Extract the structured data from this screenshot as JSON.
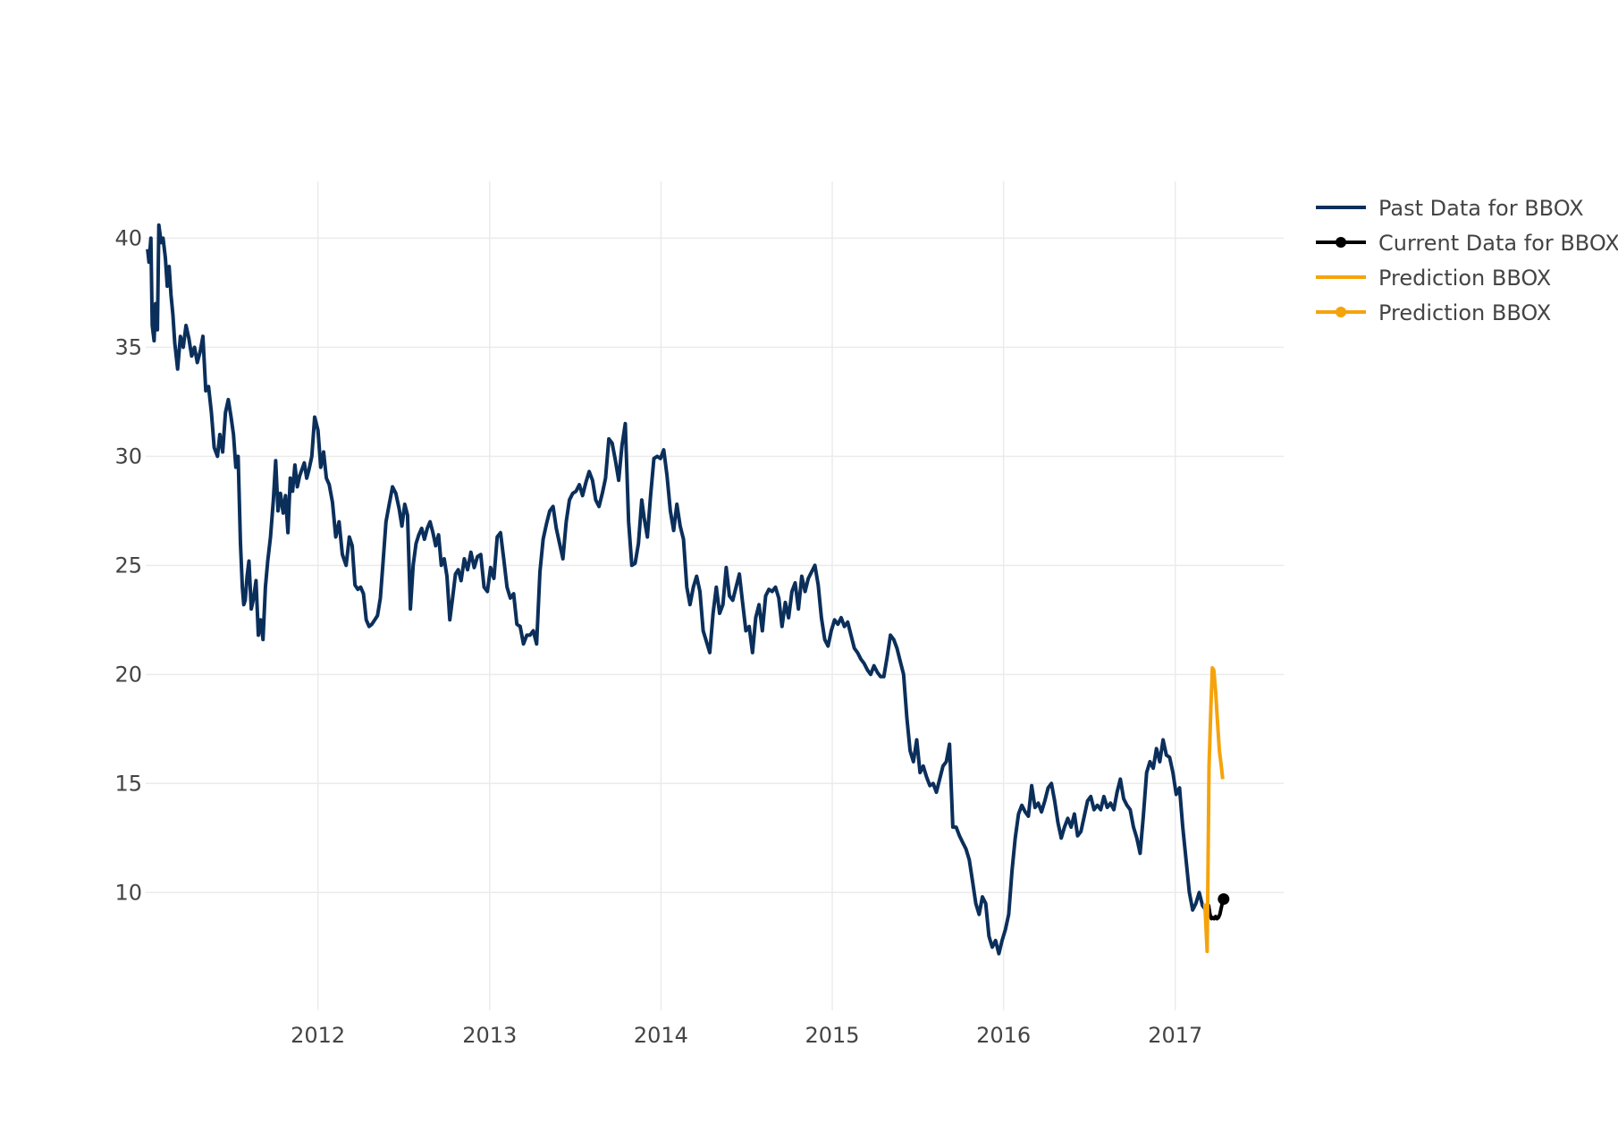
{
  "chart_data": {
    "type": "line",
    "title": "",
    "xlabel": "",
    "ylabel": "",
    "x_ticks": [
      "2012",
      "2013",
      "2014",
      "2015",
      "2016",
      "2017"
    ],
    "y_ticks": [
      10,
      15,
      20,
      25,
      30,
      35,
      40
    ],
    "xlim": [
      "2010-12-30",
      "2017-08-20"
    ],
    "ylim": [
      4.6,
      42.6
    ],
    "grid": true,
    "legend_position": "top-right",
    "series": [
      {
        "name": "Past Data for BBOX",
        "mode": "lines",
        "color": "#0b2f5b",
        "x": [
          "2011-01-03",
          "2011-01-06",
          "2011-01-10",
          "2011-01-13",
          "2011-01-17",
          "2011-01-20",
          "2011-01-24",
          "2011-01-27",
          "2011-02-01",
          "2011-02-05",
          "2011-02-10",
          "2011-02-14",
          "2011-02-18",
          "2011-02-22",
          "2011-02-26",
          "2011-03-02",
          "2011-03-08",
          "2011-03-14",
          "2011-03-20",
          "2011-03-26",
          "2011-04-01",
          "2011-04-07",
          "2011-04-13",
          "2011-04-19",
          "2011-04-25",
          "2011-05-01",
          "2011-05-07",
          "2011-05-13",
          "2011-05-19",
          "2011-05-25",
          "2011-06-01",
          "2011-06-06",
          "2011-06-12",
          "2011-06-18",
          "2011-06-24",
          "2011-06-30",
          "2011-07-05",
          "2011-07-10",
          "2011-07-15",
          "2011-07-20",
          "2011-07-24",
          "2011-07-27",
          "2011-07-30",
          "2011-08-03",
          "2011-08-07",
          "2011-08-12",
          "2011-08-17",
          "2011-08-22",
          "2011-08-27",
          "2011-09-01",
          "2011-09-06",
          "2011-09-11",
          "2011-09-16",
          "2011-09-22",
          "2011-09-28",
          "2011-10-03",
          "2011-10-08",
          "2011-10-13",
          "2011-10-19",
          "2011-10-24",
          "2011-10-29",
          "2011-11-03",
          "2011-11-08",
          "2011-11-13",
          "2011-11-18",
          "2011-11-23",
          "2011-11-28",
          "2011-12-03",
          "2011-12-08",
          "2011-12-13",
          "2011-12-19",
          "2011-12-25",
          "2012-01-01",
          "2012-01-07",
          "2012-01-13",
          "2012-01-19",
          "2012-01-25",
          "2012-02-01",
          "2012-02-08",
          "2012-02-15",
          "2012-02-22",
          "2012-03-01",
          "2012-03-08",
          "2012-03-14",
          "2012-03-20",
          "2012-03-26",
          "2012-04-01",
          "2012-04-07",
          "2012-04-13",
          "2012-04-19",
          "2012-04-25",
          "2012-05-01",
          "2012-05-07",
          "2012-05-13",
          "2012-05-19",
          "2012-05-25",
          "2012-06-01",
          "2012-06-08",
          "2012-06-15",
          "2012-06-22",
          "2012-06-28",
          "2012-07-04",
          "2012-07-10",
          "2012-07-16",
          "2012-07-22",
          "2012-07-28",
          "2012-08-03",
          "2012-08-09",
          "2012-08-15",
          "2012-08-21",
          "2012-08-27",
          "2012-09-02",
          "2012-09-08",
          "2012-09-14",
          "2012-09-20",
          "2012-09-26",
          "2012-10-02",
          "2012-10-08",
          "2012-10-14",
          "2012-10-20",
          "2012-10-26",
          "2012-11-01",
          "2012-11-08",
          "2012-11-15",
          "2012-11-22",
          "2012-11-29",
          "2012-12-06",
          "2012-12-13",
          "2012-12-20",
          "2012-12-27",
          "2013-01-03",
          "2013-01-10",
          "2013-01-17",
          "2013-01-24",
          "2013-01-31",
          "2013-02-07",
          "2013-02-14",
          "2013-02-21",
          "2013-02-28",
          "2013-03-07",
          "2013-03-14",
          "2013-03-21",
          "2013-03-28",
          "2013-04-04",
          "2013-04-11",
          "2013-04-18",
          "2013-04-25",
          "2013-05-02",
          "2013-05-09",
          "2013-05-16",
          "2013-05-23",
          "2013-05-30",
          "2013-06-06",
          "2013-06-13",
          "2013-06-20",
          "2013-06-27",
          "2013-07-04",
          "2013-07-11",
          "2013-07-18",
          "2013-07-25",
          "2013-08-01",
          "2013-08-08",
          "2013-08-15",
          "2013-08-22",
          "2013-08-29",
          "2013-09-05",
          "2013-09-12",
          "2013-09-19",
          "2013-09-26",
          "2013-10-03",
          "2013-10-10",
          "2013-10-17",
          "2013-10-24",
          "2013-10-31",
          "2013-11-07",
          "2013-11-14",
          "2013-11-19",
          "2013-11-21",
          "2013-11-26",
          "2013-12-03",
          "2013-12-10",
          "2013-12-17",
          "2013-12-24",
          "2013-12-31",
          "2014-01-07",
          "2014-01-14",
          "2014-01-21",
          "2014-01-28",
          "2014-02-04",
          "2014-02-11",
          "2014-02-18",
          "2014-02-25",
          "2014-03-04",
          "2014-03-11",
          "2014-03-18",
          "2014-03-25",
          "2014-04-01",
          "2014-04-08",
          "2014-04-15",
          "2014-04-22",
          "2014-04-29",
          "2014-05-06",
          "2014-05-13",
          "2014-05-20",
          "2014-05-27",
          "2014-06-03",
          "2014-06-10",
          "2014-06-17",
          "2014-06-24",
          "2014-07-01",
          "2014-07-08",
          "2014-07-15",
          "2014-07-22",
          "2014-07-29",
          "2014-08-05",
          "2014-08-12",
          "2014-08-19",
          "2014-08-26",
          "2014-09-02",
          "2014-09-09",
          "2014-09-16",
          "2014-09-23",
          "2014-09-30",
          "2014-10-07",
          "2014-10-14",
          "2014-10-21",
          "2014-10-28",
          "2014-11-04",
          "2014-11-11",
          "2014-11-18",
          "2014-11-25",
          "2014-12-02",
          "2014-12-09",
          "2014-12-16",
          "2014-12-23",
          "2014-12-30",
          "2015-01-06",
          "2015-01-13",
          "2015-01-20",
          "2015-01-27",
          "2015-02-03",
          "2015-02-10",
          "2015-02-17",
          "2015-02-24",
          "2015-03-03",
          "2015-03-10",
          "2015-03-17",
          "2015-03-24",
          "2015-03-31",
          "2015-04-07",
          "2015-04-14",
          "2015-04-21",
          "2015-04-28",
          "2015-05-05",
          "2015-05-12",
          "2015-05-19",
          "2015-05-26",
          "2015-06-02",
          "2015-06-09",
          "2015-06-16",
          "2015-06-23",
          "2015-06-30",
          "2015-07-07",
          "2015-07-14",
          "2015-07-21",
          "2015-07-28",
          "2015-08-04",
          "2015-08-11",
          "2015-08-18",
          "2015-08-25",
          "2015-09-01",
          "2015-09-08",
          "2015-09-15",
          "2015-09-22",
          "2015-09-29",
          "2015-10-06",
          "2015-10-13",
          "2015-10-20",
          "2015-10-27",
          "2015-11-03",
          "2015-11-10",
          "2015-11-17",
          "2015-11-24",
          "2015-12-01",
          "2015-12-08",
          "2015-12-15",
          "2015-12-22",
          "2015-12-29",
          "2016-01-05",
          "2016-01-12",
          "2016-01-19",
          "2016-01-26",
          "2016-02-02",
          "2016-02-09",
          "2016-02-16",
          "2016-02-23",
          "2016-03-01",
          "2016-03-08",
          "2016-03-15",
          "2016-03-22",
          "2016-03-29",
          "2016-04-05",
          "2016-04-12",
          "2016-04-19",
          "2016-04-26",
          "2016-05-03",
          "2016-05-10",
          "2016-05-17",
          "2016-05-24",
          "2016-05-31",
          "2016-06-07",
          "2016-06-14",
          "2016-06-21",
          "2016-06-28",
          "2016-07-05",
          "2016-07-12",
          "2016-07-19",
          "2016-07-26",
          "2016-08-02",
          "2016-08-09",
          "2016-08-16",
          "2016-08-23",
          "2016-08-30",
          "2016-09-06",
          "2016-09-13",
          "2016-09-20",
          "2016-09-27",
          "2016-10-04",
          "2016-10-11",
          "2016-10-18",
          "2016-10-25",
          "2016-11-01",
          "2016-11-08",
          "2016-11-15",
          "2016-11-22",
          "2016-11-29",
          "2016-12-06",
          "2016-12-13",
          "2016-12-20",
          "2016-12-27",
          "2017-01-03",
          "2017-01-10",
          "2017-01-17",
          "2017-01-24",
          "2017-01-31",
          "2017-02-07",
          "2017-02-14",
          "2017-02-21",
          "2017-02-28",
          "2017-03-07"
        ],
        "y": [
          39.5,
          38.9,
          40.0,
          36.0,
          35.3,
          37.0,
          35.8,
          40.6,
          39.8,
          40.0,
          39.1,
          37.8,
          38.7,
          37.4,
          36.5,
          35.2,
          34.0,
          35.5,
          35.0,
          36.0,
          35.4,
          34.6,
          35.0,
          34.3,
          34.8,
          35.5,
          33.0,
          33.2,
          32.0,
          30.4,
          30.0,
          31.0,
          30.2,
          32.0,
          32.6,
          31.8,
          31.0,
          29.5,
          30.0,
          26.0,
          24.0,
          23.2,
          23.4,
          24.5,
          25.2,
          23.0,
          23.5,
          24.3,
          21.8,
          22.5,
          21.6,
          24.0,
          25.2,
          26.3,
          28.0,
          29.8,
          27.5,
          28.3,
          27.4,
          28.2,
          26.5,
          29.0,
          28.4,
          29.6,
          28.6,
          29.1,
          29.4,
          29.7,
          29.0,
          29.4,
          30.0,
          31.8,
          31.2,
          29.5,
          30.2,
          29.0,
          28.7,
          27.9,
          26.3,
          27.0,
          25.5,
          25.0,
          26.3,
          25.9,
          24.1,
          23.9,
          24.0,
          23.7,
          22.5,
          22.2,
          22.3,
          22.5,
          22.7,
          23.5,
          25.2,
          27.0,
          27.8,
          28.6,
          28.3,
          27.6,
          26.8,
          27.8,
          27.3,
          23.0,
          25.0,
          26.0,
          26.4,
          26.7,
          26.2,
          26.7,
          27.0,
          26.5,
          25.9,
          26.4,
          25.0,
          25.3,
          24.5,
          22.5,
          23.5,
          24.6,
          24.8,
          24.3,
          25.3,
          24.8,
          25.6,
          24.9,
          25.4,
          25.5,
          24.0,
          23.8,
          24.9,
          24.4,
          26.3,
          26.5,
          25.3,
          24.0,
          23.5,
          23.7,
          22.3,
          22.2,
          21.4,
          21.8,
          21.8,
          22.0,
          21.4,
          24.7,
          26.2,
          26.9,
          27.5,
          27.7,
          26.7,
          26.0,
          25.3,
          27.0,
          28.0,
          28.3,
          28.4,
          28.7,
          28.2,
          28.8,
          29.3,
          28.9,
          28.0,
          27.7,
          28.3,
          29.0,
          30.8,
          30.6,
          29.8,
          28.9,
          30.5,
          31.5,
          27.0,
          25.0,
          25.1,
          26.0,
          27.4,
          28.0,
          27.2,
          26.3,
          28.2,
          29.9,
          30.0,
          29.9,
          30.3,
          29.1,
          27.5,
          26.6,
          27.8,
          26.8,
          26.2,
          24.0,
          23.2,
          24.0,
          24.5,
          23.8,
          22.0,
          21.5,
          21.0,
          22.8,
          24.0,
          22.8,
          23.2,
          24.9,
          23.6,
          23.4,
          24.0,
          24.6,
          23.3,
          22.0,
          22.2,
          21.0,
          22.6,
          23.2,
          22.0,
          23.6,
          23.9,
          23.8,
          24.0,
          23.5,
          22.2,
          23.3,
          22.6,
          23.8,
          24.2,
          23.0,
          24.5,
          23.8,
          24.4,
          24.7,
          25.0,
          24.1,
          22.6,
          21.6,
          21.3,
          22.0,
          22.5,
          22.3,
          22.6,
          22.2,
          22.4,
          21.8,
          21.2,
          21.0,
          20.7,
          20.5,
          20.2,
          20.0,
          20.4,
          20.1,
          19.9,
          19.9,
          20.8,
          21.8,
          21.6,
          21.2,
          20.6,
          20.0,
          18.0,
          16.5,
          16.0,
          17.0,
          15.5,
          15.8,
          15.3,
          14.9,
          15.0,
          14.6,
          15.2,
          15.8,
          16.0,
          16.8,
          13.0,
          13.0,
          12.6,
          12.3,
          12.0,
          11.5,
          10.5,
          9.5,
          9.0,
          9.8,
          9.5,
          8.0,
          7.5,
          7.8,
          7.2,
          7.8,
          8.3,
          9.0,
          11.0,
          12.5,
          13.6,
          14.0,
          13.7,
          13.5,
          14.9,
          13.9,
          14.1,
          13.7,
          14.2,
          14.8,
          15.0,
          14.2,
          13.2,
          12.5,
          13.0,
          13.4,
          13.0,
          13.6,
          12.6,
          12.8,
          13.5,
          14.2,
          14.4,
          13.8,
          14.0,
          13.8,
          14.4,
          13.9,
          14.1,
          13.8,
          14.6,
          15.2,
          14.3,
          14.0,
          13.8,
          13.0,
          12.5,
          11.8,
          13.5,
          15.5,
          16.0,
          15.7,
          16.6,
          16.0,
          17.0,
          16.3,
          16.2,
          15.5,
          14.5,
          14.8,
          13.0,
          11.5,
          10.0,
          9.2,
          9.5,
          10.0,
          9.4,
          9.2
        ]
      },
      {
        "name": "Current Data for BBOX",
        "mode": "lines+markers",
        "color": "#000000",
        "x": [
          "2017-03-07",
          "2017-03-10",
          "2017-03-13",
          "2017-03-16",
          "2017-03-19",
          "2017-03-22",
          "2017-03-25",
          "2017-03-28",
          "2017-03-31",
          "2017-04-03",
          "2017-04-06",
          "2017-04-09",
          "2017-04-12",
          "2017-04-14"
        ],
        "y": [
          9.2,
          8.9,
          9.4,
          9.0,
          8.8,
          8.85,
          8.8,
          8.9,
          8.8,
          8.85,
          9.0,
          9.3,
          9.6,
          9.7
        ],
        "marker_x": [
          "2017-04-14"
        ],
        "marker_y": [
          9.7
        ]
      },
      {
        "name": "Prediction BBOX",
        "mode": "lines",
        "color": "#f5a30c",
        "x": [
          "2017-03-05",
          "2017-03-10",
          "2017-03-14",
          "2017-03-18",
          "2017-03-21",
          "2017-03-24",
          "2017-03-28",
          "2017-04-01",
          "2017-04-05",
          "2017-04-09",
          "2017-04-12"
        ],
        "y": [
          9.5,
          7.3,
          15.8,
          18.5,
          20.3,
          20.2,
          19.2,
          17.8,
          16.5,
          15.8,
          15.2
        ]
      },
      {
        "name": "Prediction BBOX",
        "mode": "lines+markers",
        "color": "#f5a30c",
        "x": [],
        "y": []
      }
    ]
  }
}
